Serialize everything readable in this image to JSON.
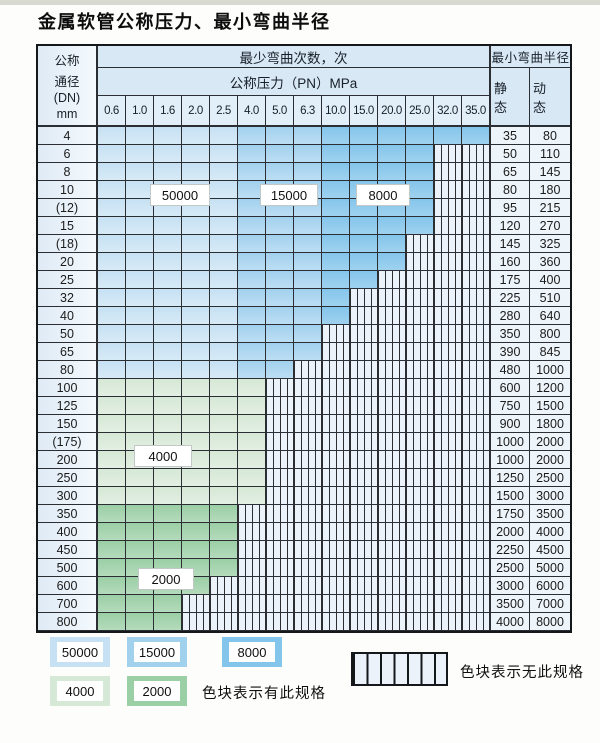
{
  "page": {
    "title": "金属软管公称压力、最小弯曲半径"
  },
  "colors": {
    "c50000": "#c6e1f3",
    "c15000": "#a2d1ee",
    "c8000": "#84c5eb",
    "c4000": "#d6e8d6",
    "c2000": "#9bcfa5",
    "hatch_bg": "#ebf2f9",
    "grid": "#2b2f33",
    "header_bg": "#d8e8f5",
    "tick_bg": "#e2eef8",
    "dn_bg": "#dfeaf5",
    "value_bg": "#edf4fa",
    "top_strip": "#d8dad2"
  },
  "table": {
    "corner": {
      "l1": "公称",
      "l2": "通径",
      "l3": "(DN)",
      "l4": "mm"
    },
    "span_bend": "最少弯曲次数，次",
    "span_radius": "最小弯曲半径",
    "span_pressure": "公称压力（PN）MPa",
    "static_label": "静 态",
    "dynamic_label": "动 态",
    "pressures": [
      "0.6",
      "1.0",
      "1.6",
      "2.0",
      "2.5",
      "4.0",
      "5.0",
      "6.3",
      "10.0",
      "15.0",
      "20.0",
      "25.0",
      "32.0",
      "35.0"
    ],
    "blue_light_max_idx": 4,
    "blue_medium_max_idx": 7,
    "rows": [
      {
        "dn": "4",
        "colored": 14,
        "zone": "blue",
        "static": "35",
        "dynamic": "80"
      },
      {
        "dn": "6",
        "colored": 12,
        "zone": "blue",
        "static": "50",
        "dynamic": "110"
      },
      {
        "dn": "8",
        "colored": 12,
        "zone": "blue",
        "static": "65",
        "dynamic": "145"
      },
      {
        "dn": "10",
        "colored": 12,
        "zone": "blue",
        "static": "80",
        "dynamic": "180"
      },
      {
        "dn": "(12)",
        "colored": 12,
        "zone": "blue",
        "static": "95",
        "dynamic": "215"
      },
      {
        "dn": "15",
        "colored": 12,
        "zone": "blue",
        "static": "120",
        "dynamic": "270"
      },
      {
        "dn": "(18)",
        "colored": 11,
        "zone": "blue",
        "static": "145",
        "dynamic": "325"
      },
      {
        "dn": "20",
        "colored": 11,
        "zone": "blue",
        "static": "160",
        "dynamic": "360"
      },
      {
        "dn": "25",
        "colored": 10,
        "zone": "blue",
        "static": "175",
        "dynamic": "400"
      },
      {
        "dn": "32",
        "colored": 9,
        "zone": "blue",
        "static": "225",
        "dynamic": "510"
      },
      {
        "dn": "40",
        "colored": 9,
        "zone": "blue",
        "static": "280",
        "dynamic": "640"
      },
      {
        "dn": "50",
        "colored": 8,
        "zone": "blue",
        "static": "350",
        "dynamic": "800"
      },
      {
        "dn": "65",
        "colored": 8,
        "zone": "blue",
        "static": "390",
        "dynamic": "845"
      },
      {
        "dn": "80",
        "colored": 7,
        "zone": "blue",
        "static": "480",
        "dynamic": "1000"
      },
      {
        "dn": "100",
        "colored": 6,
        "zone": "c4000",
        "static": "600",
        "dynamic": "1200"
      },
      {
        "dn": "125",
        "colored": 6,
        "zone": "c4000",
        "static": "750",
        "dynamic": "1500"
      },
      {
        "dn": "150",
        "colored": 6,
        "zone": "c4000",
        "static": "900",
        "dynamic": "1800"
      },
      {
        "dn": "(175)",
        "colored": 6,
        "zone": "c4000",
        "static": "1000",
        "dynamic": "2000"
      },
      {
        "dn": "200",
        "colored": 6,
        "zone": "c4000",
        "static": "1000",
        "dynamic": "2000"
      },
      {
        "dn": "250",
        "colored": 6,
        "zone": "c4000",
        "static": "1250",
        "dynamic": "2500"
      },
      {
        "dn": "300",
        "colored": 6,
        "zone": "c4000",
        "static": "1500",
        "dynamic": "3000"
      },
      {
        "dn": "350",
        "colored": 5,
        "zone": "c2000",
        "static": "1750",
        "dynamic": "3500"
      },
      {
        "dn": "400",
        "colored": 5,
        "zone": "c2000",
        "static": "2000",
        "dynamic": "4000"
      },
      {
        "dn": "450",
        "colored": 5,
        "zone": "c2000",
        "static": "2250",
        "dynamic": "4500"
      },
      {
        "dn": "500",
        "colored": 5,
        "zone": "c2000",
        "static": "2500",
        "dynamic": "5000"
      },
      {
        "dn": "600",
        "colored": 4,
        "zone": "c2000",
        "static": "3000",
        "dynamic": "6000"
      },
      {
        "dn": "700",
        "colored": 3,
        "zone": "c2000",
        "static": "3500",
        "dynamic": "7000"
      },
      {
        "dn": "800",
        "colored": 3,
        "zone": "c2000",
        "static": "4000",
        "dynamic": "8000"
      }
    ]
  },
  "zone_labels": [
    "50000",
    "15000",
    "8000",
    "4000",
    "2000"
  ],
  "legend": {
    "row1": [
      {
        "value": "50000",
        "color_key": "c50000"
      },
      {
        "value": "15000",
        "color_key": "c15000"
      },
      {
        "value": "8000",
        "color_key": "c8000"
      }
    ],
    "row2": [
      {
        "value": "4000",
        "color_key": "c4000"
      },
      {
        "value": "2000",
        "color_key": "c2000"
      }
    ],
    "has_spec_text": "色块表示有此规格",
    "no_spec_text": "色块表示无此规格"
  }
}
